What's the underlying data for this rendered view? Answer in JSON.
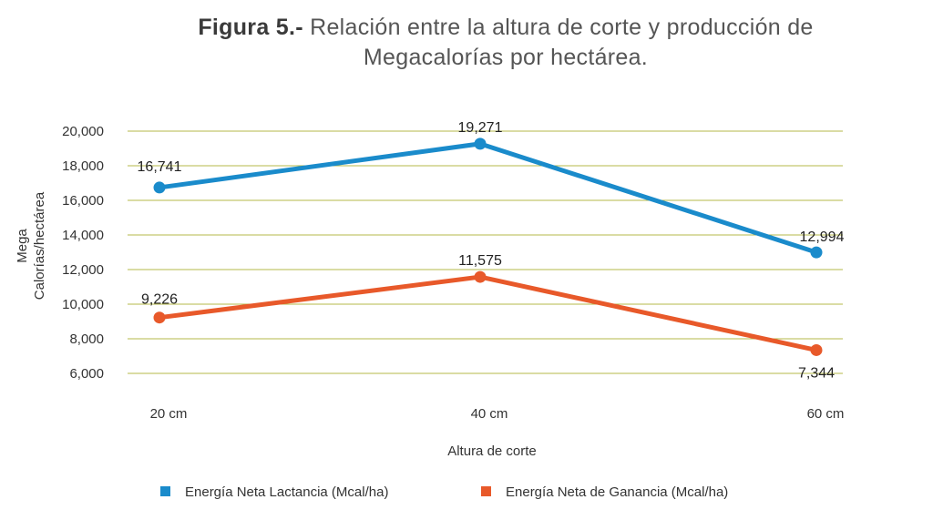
{
  "chart_data": {
    "type": "line",
    "title_lead": "Figura 5.-",
    "title_rest": "Relación entre la altura de corte y producción de",
    "title_line2": "Megacalorías por hectárea.",
    "ylabel_line1": "Mega",
    "ylabel_line2": "Calorías/hectárea",
    "xlabel": "Altura de corte",
    "categories": [
      "20 cm",
      "40 cm",
      "60 cm"
    ],
    "ylim": [
      6000,
      20000
    ],
    "yticks": [
      6000,
      8000,
      10000,
      12000,
      14000,
      16000,
      18000,
      20000
    ],
    "ytick_labels": [
      "6,000",
      "8,000",
      "10,000",
      "12,000",
      "14,000",
      "16,000",
      "18,000",
      "20,000"
    ],
    "grid": true,
    "legend_position": "bottom",
    "series": [
      {
        "name": "Energía Neta Lactancia (Mcal/ha)",
        "values": [
          16741,
          19271,
          12994
        ],
        "labels": [
          "16,741",
          "19,271",
          "12,994"
        ],
        "color": "#1a8bcb"
      },
      {
        "name": "Energía Neta de Ganancia (Mcal/ha)",
        "values": [
          9226,
          11575,
          7344
        ],
        "labels": [
          "9,226",
          "11,575",
          "7,344"
        ],
        "color": "#e8592a"
      }
    ],
    "gridline_color": "#b5b84a"
  }
}
